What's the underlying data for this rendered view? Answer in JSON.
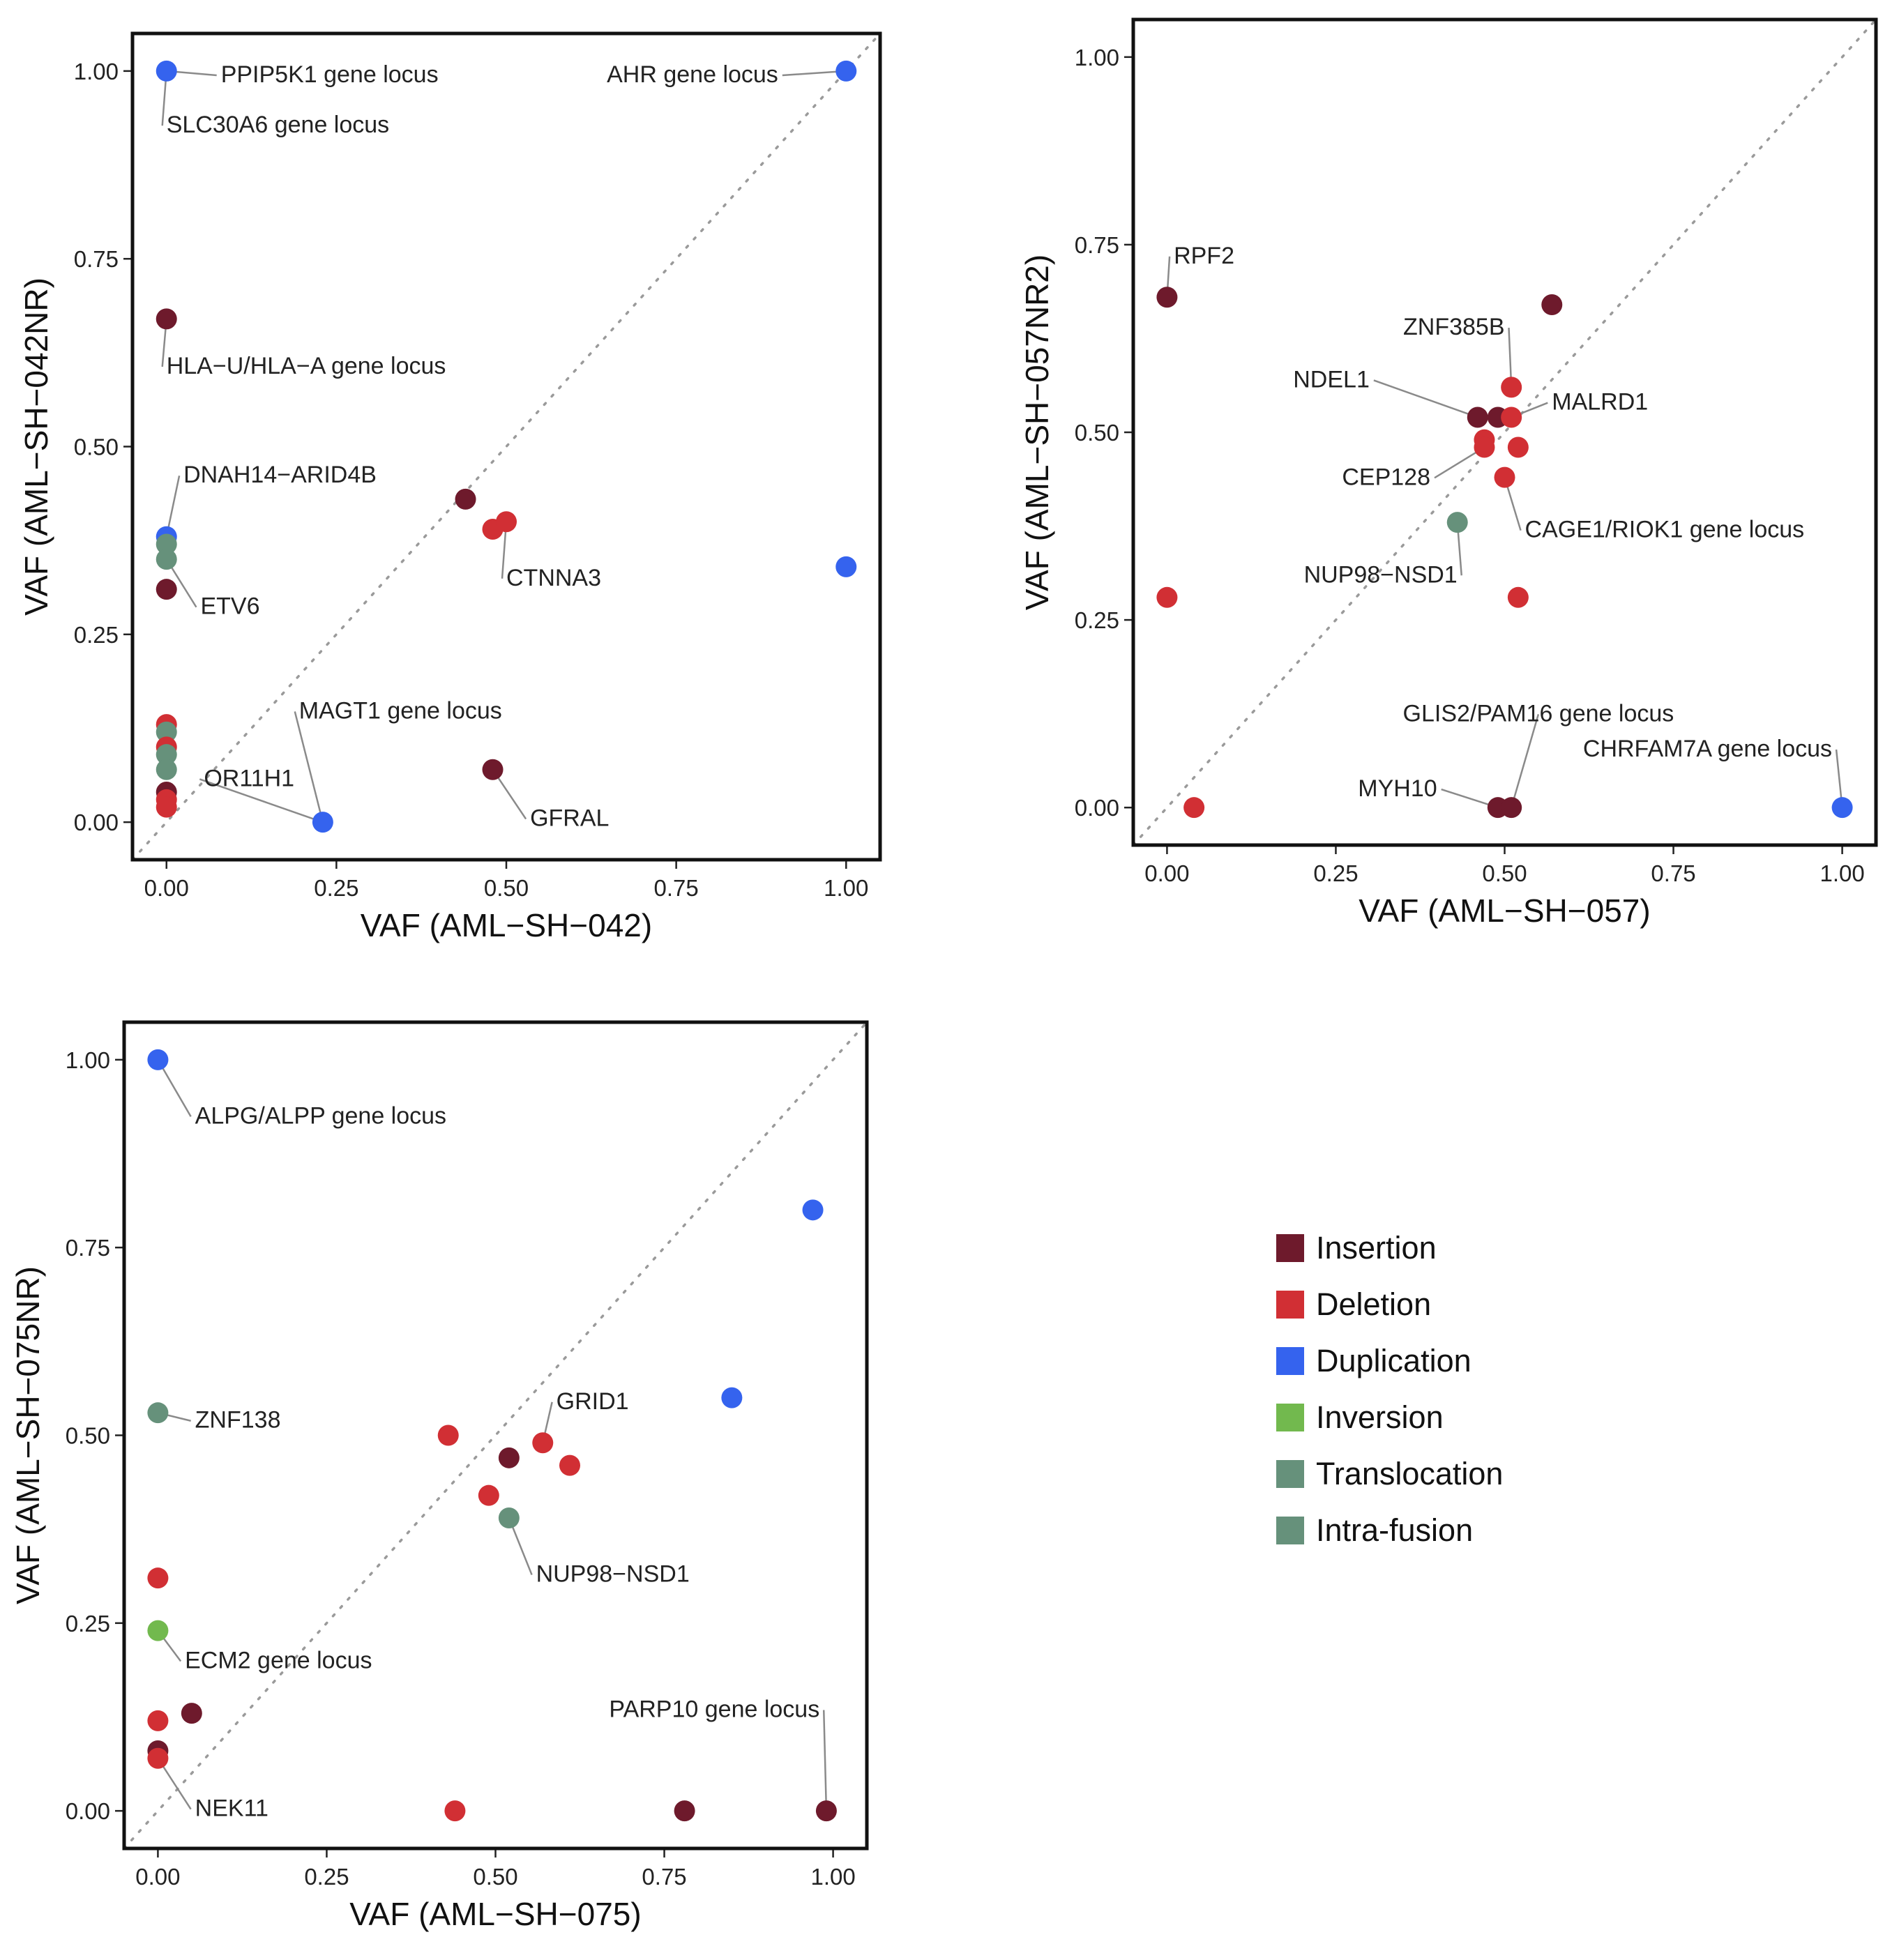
{
  "colors": {
    "Insertion": "#6e1a2c",
    "Deletion": "#d12f34",
    "Duplication": "#3563ee",
    "Inversion": "#72b94e",
    "Translocation": "#66917b",
    "Intra-fusion": "#66917b"
  },
  "legend": {
    "items": [
      {
        "label": "Insertion",
        "color": "#6e1a2c"
      },
      {
        "label": "Deletion",
        "color": "#d12f34"
      },
      {
        "label": "Duplication",
        "color": "#3563ee"
      },
      {
        "label": "Inversion",
        "color": "#72b94e"
      },
      {
        "label": "Translocation",
        "color": "#66917b"
      },
      {
        "label": "Intra-fusion",
        "color": "#66917b"
      }
    ]
  },
  "chart_data": [
    {
      "type": "scatter",
      "xlabel": "VAF (AML−SH−042)",
      "ylabel": "VAF (AML−SH−042NR)",
      "xlim": [
        -0.05,
        1.05
      ],
      "ylim": [
        -0.05,
        1.05
      ],
      "ticks": [
        "0.00",
        "0.25",
        "0.50",
        "0.75",
        "1.00"
      ],
      "diagonal": true,
      "points": [
        {
          "x": 0.0,
          "y": 1.0,
          "type": "Duplication"
        },
        {
          "x": 1.0,
          "y": 1.0,
          "type": "Duplication"
        },
        {
          "x": 0.0,
          "y": 0.67,
          "type": "Insertion"
        },
        {
          "x": 0.0,
          "y": 0.38,
          "type": "Duplication"
        },
        {
          "x": 0.0,
          "y": 0.37,
          "type": "Translocation"
        },
        {
          "x": 0.0,
          "y": 0.35,
          "type": "Translocation"
        },
        {
          "x": 0.0,
          "y": 0.31,
          "type": "Insertion"
        },
        {
          "x": 0.0,
          "y": 0.13,
          "type": "Deletion"
        },
        {
          "x": 0.0,
          "y": 0.12,
          "type": "Translocation"
        },
        {
          "x": 0.0,
          "y": 0.1,
          "type": "Deletion"
        },
        {
          "x": 0.0,
          "y": 0.09,
          "type": "Translocation"
        },
        {
          "x": 0.0,
          "y": 0.07,
          "type": "Translocation"
        },
        {
          "x": 0.0,
          "y": 0.04,
          "type": "Insertion"
        },
        {
          "x": 0.0,
          "y": 0.03,
          "type": "Deletion"
        },
        {
          "x": 0.0,
          "y": 0.02,
          "type": "Deletion"
        },
        {
          "x": 0.23,
          "y": 0.0,
          "type": "Duplication"
        },
        {
          "x": 0.44,
          "y": 0.43,
          "type": "Insertion"
        },
        {
          "x": 0.48,
          "y": 0.39,
          "type": "Deletion"
        },
        {
          "x": 0.5,
          "y": 0.4,
          "type": "Deletion"
        },
        {
          "x": 0.48,
          "y": 0.07,
          "type": "Insertion"
        },
        {
          "x": 1.0,
          "y": 0.34,
          "type": "Duplication"
        }
      ],
      "annotations": [
        {
          "text": "PPIP5K1 gene locus",
          "x": 0.0,
          "y": 1.0,
          "tx": 0.08,
          "ty": 0.985,
          "anchor": "start"
        },
        {
          "text": "SLC30A6 gene locus",
          "x": 0.0,
          "y": 1.0,
          "tx": 0.0,
          "ty": 0.918,
          "anchor": "start"
        },
        {
          "text": "AHR gene locus",
          "x": 1.0,
          "y": 1.0,
          "tx": 0.9,
          "ty": 0.985,
          "anchor": "end"
        },
        {
          "text": "HLA−U/HLA−A gene locus",
          "x": 0.0,
          "y": 0.67,
          "tx": 0.0,
          "ty": 0.597,
          "anchor": "start"
        },
        {
          "text": "DNAH14−ARID4B",
          "x": 0.0,
          "y": 0.38,
          "tx": 0.025,
          "ty": 0.452,
          "anchor": "start"
        },
        {
          "text": "ETV6",
          "x": 0.0,
          "y": 0.35,
          "tx": 0.05,
          "ty": 0.277,
          "anchor": "start"
        },
        {
          "text": "CTNNA3",
          "x": 0.5,
          "y": 0.4,
          "tx": 0.5,
          "ty": 0.315,
          "anchor": "start"
        },
        {
          "text": "MAGT1 gene locus",
          "x": 0.23,
          "y": 0.0,
          "tx": 0.195,
          "ty": 0.138,
          "anchor": "start"
        },
        {
          "text": "OR11H1",
          "x": 0.23,
          "y": 0.0,
          "tx": 0.055,
          "ty": 0.048,
          "anchor": "start"
        },
        {
          "text": "GFRAL",
          "x": 0.48,
          "y": 0.07,
          "tx": 0.535,
          "ty": -0.005,
          "anchor": "start"
        }
      ]
    },
    {
      "type": "scatter",
      "xlabel": "VAF (AML−SH−057)",
      "ylabel": "VAF (AML−SH−057NR2)",
      "xlim": [
        -0.05,
        1.05
      ],
      "ylim": [
        -0.05,
        1.05
      ],
      "ticks": [
        "0.00",
        "0.25",
        "0.50",
        "0.75",
        "1.00"
      ],
      "diagonal": true,
      "points": [
        {
          "x": 0.0,
          "y": 0.68,
          "type": "Insertion"
        },
        {
          "x": 0.57,
          "y": 0.67,
          "type": "Insertion"
        },
        {
          "x": 0.51,
          "y": 0.56,
          "type": "Deletion"
        },
        {
          "x": 0.46,
          "y": 0.52,
          "type": "Insertion"
        },
        {
          "x": 0.49,
          "y": 0.52,
          "type": "Insertion"
        },
        {
          "x": 0.51,
          "y": 0.52,
          "type": "Deletion"
        },
        {
          "x": 0.47,
          "y": 0.49,
          "type": "Deletion"
        },
        {
          "x": 0.47,
          "y": 0.48,
          "type": "Deletion"
        },
        {
          "x": 0.52,
          "y": 0.48,
          "type": "Deletion"
        },
        {
          "x": 0.5,
          "y": 0.44,
          "type": "Deletion"
        },
        {
          "x": 0.43,
          "y": 0.38,
          "type": "Translocation"
        },
        {
          "x": 0.0,
          "y": 0.28,
          "type": "Deletion"
        },
        {
          "x": 0.52,
          "y": 0.28,
          "type": "Deletion"
        },
        {
          "x": 0.04,
          "y": 0.0,
          "type": "Deletion"
        },
        {
          "x": 0.49,
          "y": 0.0,
          "type": "Insertion"
        },
        {
          "x": 0.51,
          "y": 0.0,
          "type": "Insertion"
        },
        {
          "x": 1.0,
          "y": 0.0,
          "type": "Duplication"
        }
      ],
      "annotations": [
        {
          "text": "RPF2",
          "x": 0.0,
          "y": 0.68,
          "tx": 0.01,
          "ty": 0.725,
          "anchor": "start"
        },
        {
          "text": "ZNF385B",
          "x": 0.51,
          "y": 0.56,
          "tx": 0.5,
          "ty": 0.63,
          "anchor": "end"
        },
        {
          "text": "NDEL1",
          "x": 0.46,
          "y": 0.52,
          "tx": 0.3,
          "ty": 0.56,
          "anchor": "end"
        },
        {
          "text": "MALRD1",
          "x": 0.51,
          "y": 0.52,
          "tx": 0.57,
          "ty": 0.53,
          "anchor": "start"
        },
        {
          "text": "CEP128",
          "x": 0.47,
          "y": 0.48,
          "tx": 0.39,
          "ty": 0.43,
          "anchor": "end"
        },
        {
          "text": "CAGE1/RIOK1 gene locus",
          "x": 0.5,
          "y": 0.44,
          "tx": 0.53,
          "ty": 0.36,
          "anchor": "start"
        },
        {
          "text": "NUP98−NSD1",
          "x": 0.43,
          "y": 0.38,
          "tx": 0.43,
          "ty": 0.3,
          "anchor": "end"
        },
        {
          "text": "GLIS2/PAM16 gene locus",
          "x": 0.51,
          "y": 0.0,
          "tx": 0.55,
          "ty": 0.115,
          "anchor": "middle"
        },
        {
          "text": "CHRFAM7A gene locus",
          "x": 1.0,
          "y": 0.0,
          "tx": 0.985,
          "ty": 0.068,
          "anchor": "end"
        },
        {
          "text": "MYH10",
          "x": 0.49,
          "y": 0.0,
          "tx": 0.4,
          "ty": 0.015,
          "anchor": "end"
        }
      ]
    },
    {
      "type": "scatter",
      "xlabel": "VAF (AML−SH−075)",
      "ylabel": "VAF (AML−SH−075NR)",
      "xlim": [
        -0.05,
        1.05
      ],
      "ylim": [
        -0.05,
        1.05
      ],
      "ticks": [
        "0.00",
        "0.25",
        "0.50",
        "0.75",
        "1.00"
      ],
      "diagonal": true,
      "points": [
        {
          "x": 0.0,
          "y": 1.0,
          "type": "Duplication"
        },
        {
          "x": 0.97,
          "y": 0.8,
          "type": "Duplication"
        },
        {
          "x": 0.85,
          "y": 0.55,
          "type": "Duplication"
        },
        {
          "x": 0.0,
          "y": 0.53,
          "type": "Translocation"
        },
        {
          "x": 0.43,
          "y": 0.5,
          "type": "Deletion"
        },
        {
          "x": 0.57,
          "y": 0.49,
          "type": "Deletion"
        },
        {
          "x": 0.52,
          "y": 0.47,
          "type": "Insertion"
        },
        {
          "x": 0.61,
          "y": 0.46,
          "type": "Deletion"
        },
        {
          "x": 0.49,
          "y": 0.42,
          "type": "Deletion"
        },
        {
          "x": 0.52,
          "y": 0.39,
          "type": "Translocation"
        },
        {
          "x": 0.0,
          "y": 0.31,
          "type": "Deletion"
        },
        {
          "x": 0.0,
          "y": 0.24,
          "type": "Inversion"
        },
        {
          "x": 0.05,
          "y": 0.13,
          "type": "Insertion"
        },
        {
          "x": 0.0,
          "y": 0.12,
          "type": "Deletion"
        },
        {
          "x": 0.0,
          "y": 0.08,
          "type": "Insertion"
        },
        {
          "x": 0.0,
          "y": 0.07,
          "type": "Deletion"
        },
        {
          "x": 0.44,
          "y": 0.0,
          "type": "Deletion"
        },
        {
          "x": 0.78,
          "y": 0.0,
          "type": "Insertion"
        },
        {
          "x": 0.99,
          "y": 0.0,
          "type": "Insertion"
        }
      ],
      "annotations": [
        {
          "text": "ALPG/ALPP gene locus",
          "x": 0.0,
          "y": 1.0,
          "tx": 0.055,
          "ty": 0.915,
          "anchor": "start"
        },
        {
          "text": "ZNF138",
          "x": 0.0,
          "y": 0.53,
          "tx": 0.055,
          "ty": 0.51,
          "anchor": "start"
        },
        {
          "text": "GRID1",
          "x": 0.57,
          "y": 0.49,
          "tx": 0.59,
          "ty": 0.535,
          "anchor": "start"
        },
        {
          "text": "NUP98−NSD1",
          "x": 0.52,
          "y": 0.39,
          "tx": 0.56,
          "ty": 0.305,
          "anchor": "start"
        },
        {
          "text": "ECM2 gene locus",
          "x": 0.0,
          "y": 0.24,
          "tx": 0.04,
          "ty": 0.19,
          "anchor": "start"
        },
        {
          "text": "NEK11",
          "x": 0.0,
          "y": 0.07,
          "tx": 0.055,
          "ty": -0.007,
          "anchor": "start"
        },
        {
          "text": "PARP10 gene locus",
          "x": 0.99,
          "y": 0.0,
          "tx": 0.98,
          "ty": 0.125,
          "anchor": "end"
        }
      ]
    }
  ]
}
